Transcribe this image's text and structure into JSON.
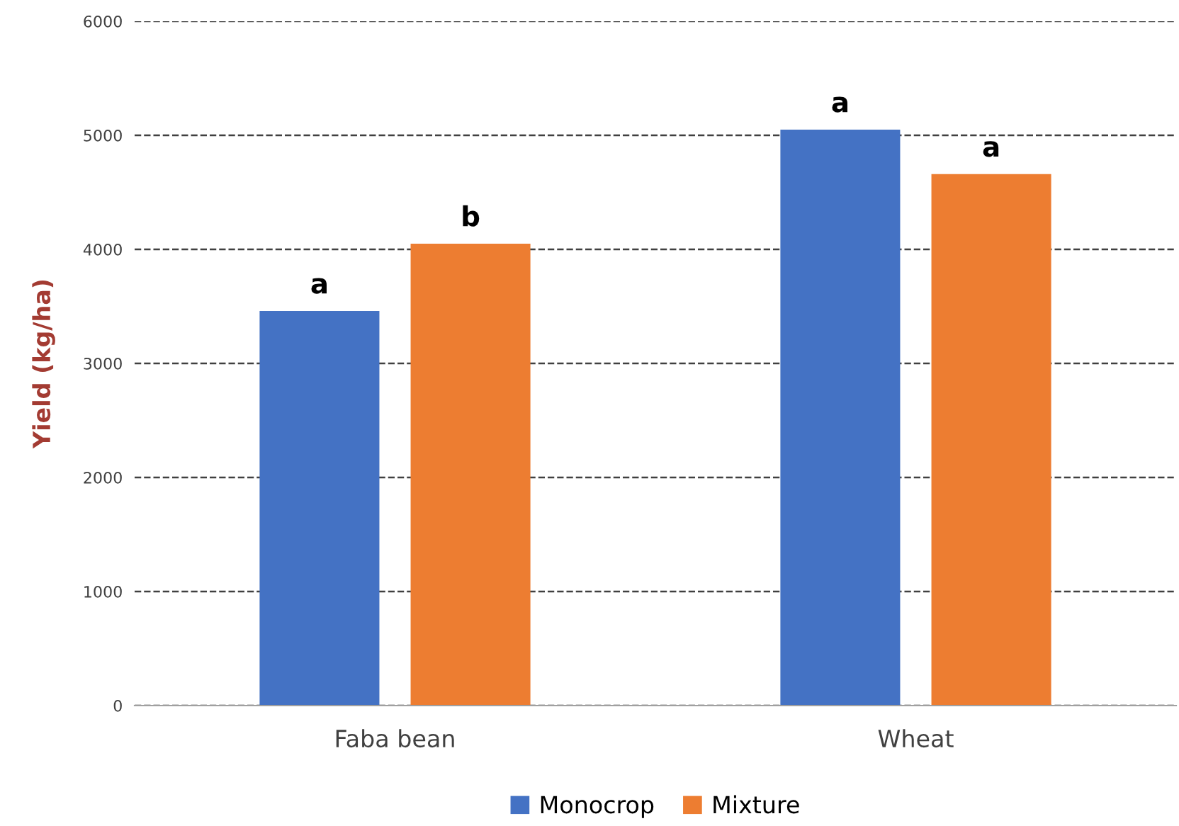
{
  "chart_data": {
    "type": "bar",
    "ylabel": "Yield (kg/ha)",
    "categories": [
      "Faba bean",
      "Wheat"
    ],
    "series": [
      {
        "name": "Monocrop",
        "color": "#4472c4",
        "values": [
          3460,
          5050
        ],
        "value_labels": [
          "a",
          "a"
        ]
      },
      {
        "name": "Mixture",
        "color": "#ed7d31",
        "values": [
          4050,
          4660
        ],
        "value_labels": [
          "b",
          "a"
        ]
      }
    ],
    "ylim": [
      0,
      6000
    ],
    "yticks": [
      0,
      1000,
      2000,
      3000,
      4000,
      5000,
      6000
    ],
    "grid": "y",
    "legend": "bottom"
  }
}
